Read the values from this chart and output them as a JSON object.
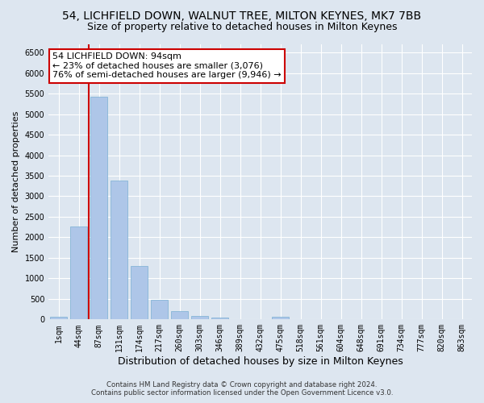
{
  "title": "54, LICHFIELD DOWN, WALNUT TREE, MILTON KEYNES, MK7 7BB",
  "subtitle": "Size of property relative to detached houses in Milton Keynes",
  "xlabel": "Distribution of detached houses by size in Milton Keynes",
  "ylabel": "Number of detached properties",
  "footer_line1": "Contains HM Land Registry data © Crown copyright and database right 2024.",
  "footer_line2": "Contains public sector information licensed under the Open Government Licence v3.0.",
  "categories": [
    "1sqm",
    "44sqm",
    "87sqm",
    "131sqm",
    "174sqm",
    "217sqm",
    "260sqm",
    "303sqm",
    "346sqm",
    "389sqm",
    "432sqm",
    "475sqm",
    "518sqm",
    "561sqm",
    "604sqm",
    "648sqm",
    "691sqm",
    "734sqm",
    "777sqm",
    "820sqm",
    "863sqm"
  ],
  "values": [
    60,
    2270,
    5430,
    3380,
    1310,
    470,
    210,
    90,
    50,
    0,
    0,
    60,
    0,
    0,
    0,
    0,
    0,
    0,
    0,
    0,
    0
  ],
  "bar_color": "#aec6e8",
  "bar_edge_color": "#7aafd4",
  "annotation_title": "54 LICHFIELD DOWN: 94sqm",
  "annotation_line2": "← 23% of detached houses are smaller (3,076)",
  "annotation_line3": "76% of semi-detached houses are larger (9,946) →",
  "annotation_box_color": "#ffffff",
  "annotation_box_edge_color": "#cc0000",
  "vline_color": "#cc0000",
  "vline_x_index": 2,
  "ylim": [
    0,
    6700
  ],
  "yticks": [
    0,
    500,
    1000,
    1500,
    2000,
    2500,
    3000,
    3500,
    4000,
    4500,
    5000,
    5500,
    6000,
    6500
  ],
  "bg_color": "#dde6f0",
  "plot_bg_color": "#dde6f0",
  "grid_color": "#ffffff",
  "title_fontsize": 10,
  "subtitle_fontsize": 9,
  "xlabel_fontsize": 9,
  "ylabel_fontsize": 8,
  "tick_fontsize": 7,
  "annotation_fontsize": 8
}
